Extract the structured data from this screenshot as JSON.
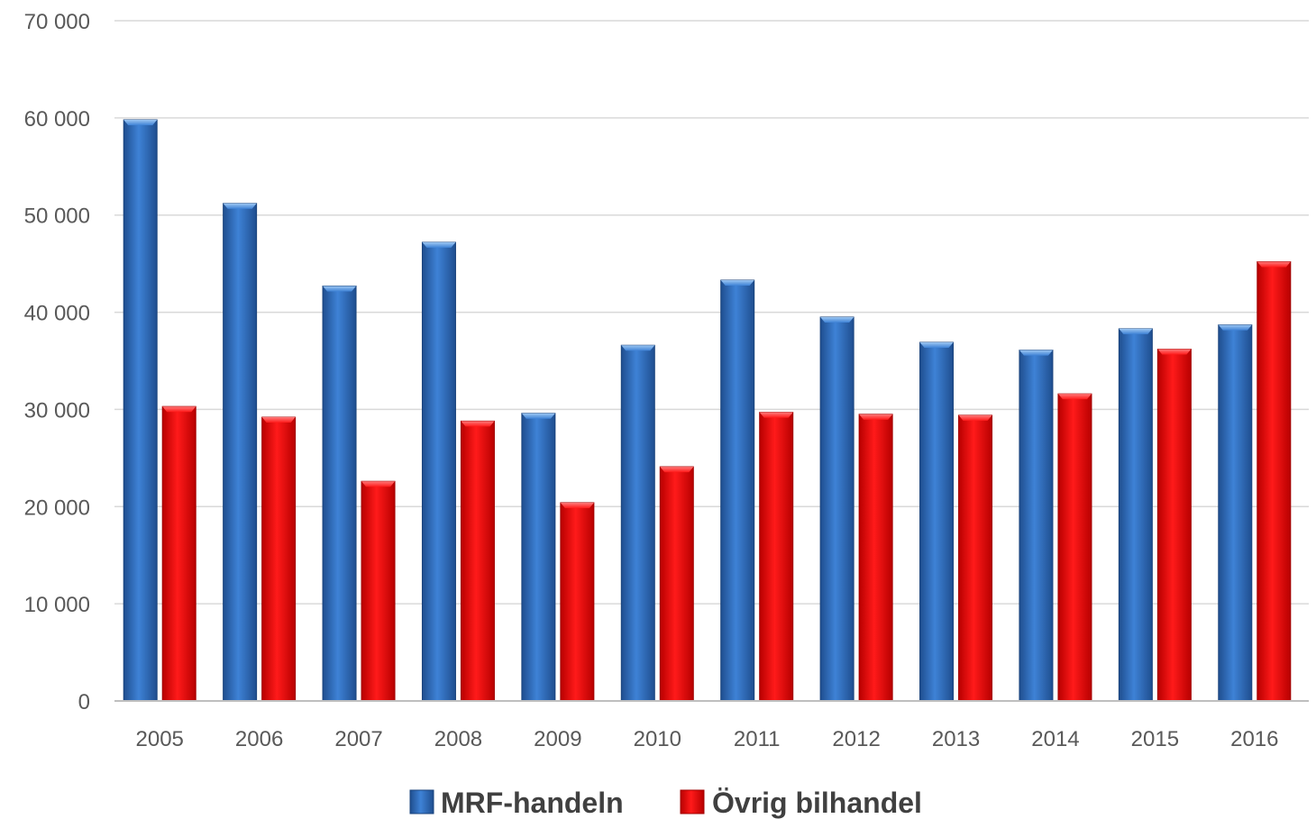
{
  "chart_data": {
    "type": "bar",
    "title": "",
    "xlabel": "",
    "ylabel": "",
    "categories": [
      "2005",
      "2006",
      "2007",
      "2008",
      "2009",
      "2010",
      "2011",
      "2012",
      "2013",
      "2014",
      "2015",
      "2016"
    ],
    "series": [
      {
        "name": "MRF-handeln",
        "color": "#2E6DC0",
        "values": [
          59800,
          51200,
          42700,
          47200,
          29600,
          36600,
          43300,
          39500,
          36900,
          36100,
          38300,
          38700
        ]
      },
      {
        "name": "Övrig bilhandel",
        "color": "#E00000",
        "values": [
          30300,
          29200,
          22600,
          28800,
          20400,
          24100,
          29700,
          29500,
          29400,
          31600,
          36200,
          45200
        ]
      }
    ],
    "ylim": [
      0,
      70000
    ],
    "yticks": [
      0,
      10000,
      20000,
      30000,
      40000,
      50000,
      60000,
      70000
    ],
    "ytick_labels": [
      "0",
      "10 000",
      "20 000",
      "30 000",
      "40 000",
      "50 000",
      "60 000",
      "70 000"
    ],
    "grid": true,
    "legend_position": "bottom-center"
  }
}
